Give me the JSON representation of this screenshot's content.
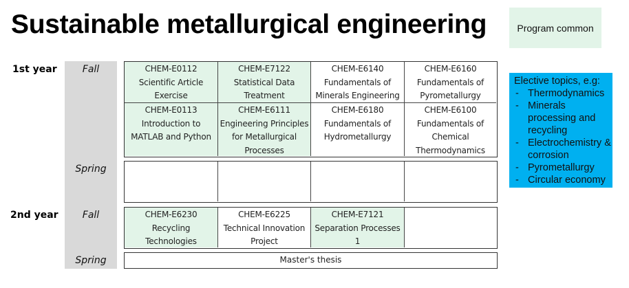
{
  "title": "Sustainable metallurgical engineering",
  "legend": {
    "label": "Program common",
    "color": "#e2f4e8"
  },
  "years": [
    {
      "label": "1st year"
    },
    {
      "label": "2nd year"
    }
  ],
  "semesters": {
    "y1_fall": "Fall",
    "y1_spring": "Spring",
    "y2_fall": "Fall",
    "y2_spring": "Spring"
  },
  "courses": {
    "y1_fall": [
      {
        "code": "CHEM-E0112",
        "name": "Scientific Article Exercise",
        "lines": [
          "CHEM-E0112",
          "Scientific Article",
          "Exercise"
        ],
        "common": true
      },
      {
        "code": "CHEM-E7122",
        "name": "Statistical Data Treatment",
        "lines": [
          "CHEM-E7122",
          "Statistical Data",
          "Treatment"
        ],
        "common": true
      },
      {
        "code": "CHEM-E6140",
        "name": "Fundamentals of Minerals Engineering",
        "lines": [
          "CHEM-E6140",
          "Fundamentals of",
          "Minerals Engineering"
        ],
        "common": false
      },
      {
        "code": "CHEM-E6160",
        "name": "Fundamentals of Pyrometallurgy",
        "lines": [
          "CHEM-E6160",
          "Fundamentals of",
          "Pyrometallurgy"
        ],
        "common": false
      },
      {
        "code": "CHEM-E0113",
        "name": "Introduction to MATLAB and Python",
        "lines": [
          "CHEM-E0113",
          "Introduction to",
          "MATLAB and Python"
        ],
        "common": true
      },
      {
        "code": "CHEM-E6111",
        "name": "Engineering Principles for Metallurgical Processes",
        "lines": [
          "CHEM-E6111",
          "Engineering Principles",
          "for Metallurgical",
          "Processes"
        ],
        "common": true
      },
      {
        "code": "CHEM-E6180",
        "name": "Fundamentals of Hydrometallurgy",
        "lines": [
          "CHEM-E6180",
          "Fundamentals of",
          "Hydrometallurgy"
        ],
        "common": false
      },
      {
        "code": "CHEM-E6100",
        "name": "Fundamentals of Chemical Thermodynamics",
        "lines": [
          "CHEM-E6100",
          "Fundamentals of",
          "Chemical",
          "Thermodynamics"
        ],
        "common": false
      }
    ],
    "y1_spring": [
      {
        "lines": [],
        "common": false
      },
      {
        "lines": [],
        "common": false
      },
      {
        "lines": [],
        "common": false
      },
      {
        "lines": [],
        "common": false
      }
    ],
    "y2_fall": [
      {
        "code": "CHEM-E6230",
        "name": "Recycling Technologies",
        "lines": [
          "CHEM-E6230",
          "Recycling",
          "Technologies"
        ],
        "common": true
      },
      {
        "code": "CHEM-E6225",
        "name": "Technical Innovation Project",
        "lines": [
          "CHEM-E6225",
          "Technical Innovation",
          "Project"
        ],
        "common": false
      },
      {
        "code": "CHEM-E7121",
        "name": "Separation Processes 1",
        "lines": [
          "CHEM-E7121",
          "Separation Processes",
          "1"
        ],
        "common": true
      },
      {
        "lines": [],
        "common": false
      }
    ],
    "y2_spring": {
      "label": "Master's thesis"
    }
  },
  "elective": {
    "heading": "Elective topics, e.g:",
    "items": [
      "Thermodynamics",
      "Minerals processing and recycling",
      "Electrochemistry & corrosion",
      "Pyrometallurgy",
      "Circular economy"
    ],
    "color": "#00b0f0"
  }
}
